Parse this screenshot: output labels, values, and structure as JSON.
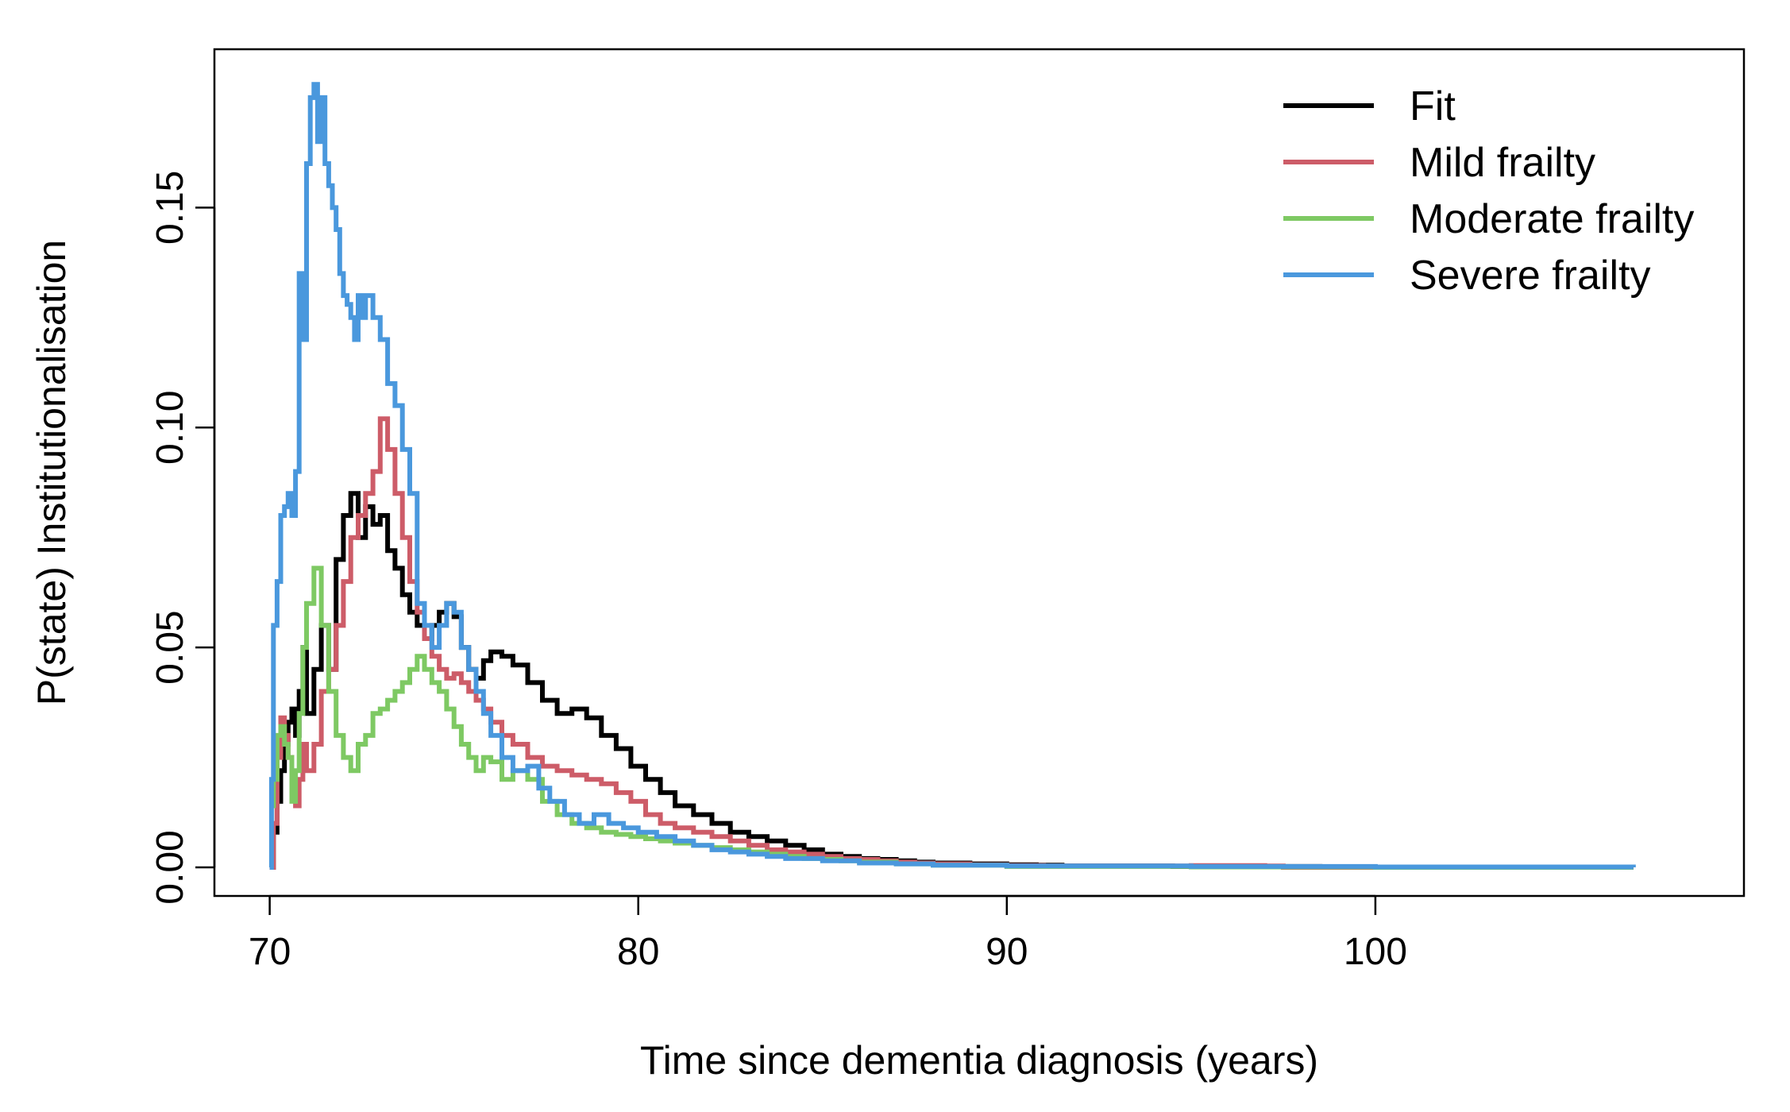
{
  "chart_data": {
    "type": "line",
    "title": "",
    "xlabel": "Time since dementia diagnosis (years)",
    "ylabel": "P(state) Institutionalisation",
    "xlim": [
      68.5,
      110
    ],
    "ylim": [
      -0.0065,
      0.186
    ],
    "xticks": [
      70,
      80,
      90,
      100
    ],
    "xtick_labels": [
      "70",
      "80",
      "90",
      "100"
    ],
    "yticks": [
      0.0,
      0.05,
      0.1,
      0.15
    ],
    "ytick_labels": [
      "0.00",
      "0.05",
      "0.10",
      "0.15"
    ],
    "grid": false,
    "legend_position": "top-right",
    "step": true,
    "series": [
      {
        "name": "Fit",
        "color": "#000000",
        "x": [
          70.0,
          70.1,
          70.2,
          70.3,
          70.4,
          70.5,
          70.6,
          70.7,
          70.8,
          70.9,
          71.0,
          71.2,
          71.4,
          71.6,
          71.8,
          72.0,
          72.2,
          72.4,
          72.6,
          72.8,
          73.0,
          73.2,
          73.4,
          73.6,
          73.8,
          74.0,
          74.2,
          74.4,
          74.6,
          74.8,
          75.0,
          75.2,
          75.4,
          75.6,
          75.8,
          76.0,
          76.3,
          76.6,
          77.0,
          77.4,
          77.8,
          78.2,
          78.6,
          79.0,
          79.4,
          79.8,
          80.2,
          80.6,
          81.0,
          81.5,
          82.0,
          82.5,
          83.0,
          83.5,
          84.0,
          84.5,
          85.0,
          85.5,
          86.0,
          86.5,
          87.0,
          87.5,
          88.0,
          89.0,
          90.0,
          90.8,
          91.5,
          94.5,
          97.0,
          98.3,
          98.5,
          103.0,
          107.0
        ],
        "y": [
          0.0,
          0.008,
          0.015,
          0.022,
          0.028,
          0.033,
          0.036,
          0.03,
          0.04,
          0.05,
          0.035,
          0.045,
          0.055,
          0.045,
          0.07,
          0.08,
          0.085,
          0.075,
          0.082,
          0.078,
          0.08,
          0.072,
          0.068,
          0.062,
          0.058,
          0.055,
          0.052,
          0.055,
          0.058,
          0.06,
          0.057,
          0.05,
          0.045,
          0.043,
          0.047,
          0.049,
          0.048,
          0.046,
          0.042,
          0.038,
          0.035,
          0.036,
          0.034,
          0.03,
          0.027,
          0.023,
          0.02,
          0.017,
          0.014,
          0.012,
          0.01,
          0.008,
          0.007,
          0.006,
          0.005,
          0.004,
          0.003,
          0.0025,
          0.002,
          0.0018,
          0.0015,
          0.0012,
          0.001,
          0.0008,
          0.0006,
          0.0005,
          0.0003,
          0.0002,
          0.0002,
          0.0002,
          0.0,
          0.0,
          0.0
        ]
      },
      {
        "name": "Mild frailty",
        "color": "#cd5c68",
        "x": [
          70.0,
          70.1,
          70.2,
          70.3,
          70.4,
          70.5,
          70.6,
          70.7,
          70.8,
          70.9,
          71.0,
          71.2,
          71.4,
          71.6,
          71.8,
          72.0,
          72.2,
          72.4,
          72.6,
          72.8,
          73.0,
          73.2,
          73.4,
          73.6,
          73.8,
          74.0,
          74.2,
          74.4,
          74.6,
          74.8,
          75.0,
          75.2,
          75.4,
          75.6,
          75.8,
          76.0,
          76.3,
          76.6,
          77.0,
          77.4,
          77.8,
          78.2,
          78.6,
          79.0,
          79.4,
          79.8,
          80.2,
          80.6,
          81.0,
          81.5,
          82.0,
          82.5,
          83.0,
          83.5,
          84.0,
          84.5,
          85.0,
          85.5,
          86.0,
          86.5,
          87.0,
          87.5,
          88.0,
          89.0,
          90.0,
          91.0,
          94.5,
          95.0,
          96.0,
          97.0,
          97.5,
          103.0,
          107.0
        ],
        "y": [
          0.0,
          0.01,
          0.025,
          0.034,
          0.03,
          0.025,
          0.018,
          0.014,
          0.02,
          0.028,
          0.022,
          0.028,
          0.04,
          0.045,
          0.055,
          0.065,
          0.075,
          0.08,
          0.085,
          0.09,
          0.102,
          0.095,
          0.085,
          0.075,
          0.065,
          0.058,
          0.052,
          0.048,
          0.045,
          0.043,
          0.044,
          0.042,
          0.04,
          0.038,
          0.036,
          0.033,
          0.03,
          0.028,
          0.025,
          0.023,
          0.022,
          0.021,
          0.02,
          0.019,
          0.017,
          0.015,
          0.012,
          0.01,
          0.009,
          0.008,
          0.007,
          0.006,
          0.005,
          0.004,
          0.0035,
          0.003,
          0.0025,
          0.002,
          0.0018,
          0.0015,
          0.0012,
          0.001,
          0.0008,
          0.0006,
          0.0004,
          0.0003,
          0.0003,
          0.0004,
          0.0004,
          0.0003,
          0.0,
          0.0,
          0.0
        ]
      },
      {
        "name": "Moderate frailty",
        "color": "#7ec963",
        "x": [
          70.0,
          70.1,
          70.2,
          70.3,
          70.4,
          70.5,
          70.6,
          70.7,
          70.8,
          70.9,
          71.0,
          71.2,
          71.4,
          71.6,
          71.8,
          72.0,
          72.2,
          72.4,
          72.6,
          72.8,
          73.0,
          73.2,
          73.4,
          73.6,
          73.8,
          74.0,
          74.2,
          74.4,
          74.6,
          74.8,
          75.0,
          75.2,
          75.4,
          75.6,
          75.8,
          76.0,
          76.3,
          76.6,
          77.0,
          77.4,
          77.8,
          78.2,
          78.6,
          79.0,
          79.4,
          79.8,
          80.2,
          80.6,
          81.0,
          81.5,
          82.0,
          82.5,
          83.0,
          83.5,
          84.0,
          84.5,
          85.0,
          85.5,
          86.0,
          87.0,
          88.0,
          90.0,
          95.0,
          100.0,
          107.0
        ],
        "y": [
          0.014,
          0.02,
          0.03,
          0.032,
          0.028,
          0.025,
          0.015,
          0.022,
          0.035,
          0.05,
          0.06,
          0.068,
          0.055,
          0.04,
          0.03,
          0.025,
          0.022,
          0.028,
          0.03,
          0.035,
          0.036,
          0.038,
          0.04,
          0.042,
          0.045,
          0.048,
          0.045,
          0.042,
          0.04,
          0.036,
          0.032,
          0.028,
          0.025,
          0.022,
          0.025,
          0.024,
          0.02,
          0.022,
          0.02,
          0.015,
          0.012,
          0.01,
          0.009,
          0.008,
          0.0075,
          0.007,
          0.0065,
          0.006,
          0.0055,
          0.005,
          0.0045,
          0.004,
          0.0035,
          0.003,
          0.0025,
          0.002,
          0.0018,
          0.0015,
          0.0012,
          0.0008,
          0.0005,
          0.0002,
          0.0001,
          0.0,
          0.0
        ]
      },
      {
        "name": "Severe frailty",
        "color": "#4a98dd",
        "x": [
          70.0,
          70.05,
          70.1,
          70.2,
          70.3,
          70.4,
          70.5,
          70.6,
          70.7,
          70.8,
          70.9,
          71.0,
          71.1,
          71.2,
          71.3,
          71.4,
          71.5,
          71.6,
          71.7,
          71.8,
          71.9,
          72.0,
          72.1,
          72.2,
          72.3,
          72.4,
          72.5,
          72.6,
          72.8,
          73.0,
          73.2,
          73.4,
          73.6,
          73.8,
          74.0,
          74.2,
          74.4,
          74.6,
          74.8,
          75.0,
          75.2,
          75.4,
          75.6,
          75.8,
          76.0,
          76.3,
          76.6,
          77.0,
          77.3,
          77.6,
          78.0,
          78.4,
          78.8,
          79.2,
          79.6,
          80.0,
          80.5,
          81.0,
          81.5,
          82.0,
          82.5,
          83.0,
          83.5,
          84.0,
          85.0,
          86.0,
          87.0,
          88.0,
          90.0,
          95.0,
          100.0,
          107.0
        ],
        "y": [
          0.0,
          0.02,
          0.055,
          0.065,
          0.08,
          0.082,
          0.085,
          0.08,
          0.09,
          0.135,
          0.12,
          0.16,
          0.175,
          0.178,
          0.165,
          0.175,
          0.16,
          0.155,
          0.15,
          0.145,
          0.135,
          0.13,
          0.128,
          0.125,
          0.12,
          0.13,
          0.125,
          0.13,
          0.125,
          0.12,
          0.11,
          0.105,
          0.095,
          0.085,
          0.06,
          0.055,
          0.05,
          0.055,
          0.06,
          0.058,
          0.05,
          0.045,
          0.04,
          0.035,
          0.03,
          0.025,
          0.022,
          0.023,
          0.018,
          0.015,
          0.012,
          0.01,
          0.012,
          0.01,
          0.009,
          0.008,
          0.007,
          0.006,
          0.005,
          0.004,
          0.0035,
          0.003,
          0.0025,
          0.002,
          0.0015,
          0.001,
          0.0008,
          0.0005,
          0.0003,
          0.0002,
          0.0001,
          0.0
        ]
      }
    ]
  }
}
